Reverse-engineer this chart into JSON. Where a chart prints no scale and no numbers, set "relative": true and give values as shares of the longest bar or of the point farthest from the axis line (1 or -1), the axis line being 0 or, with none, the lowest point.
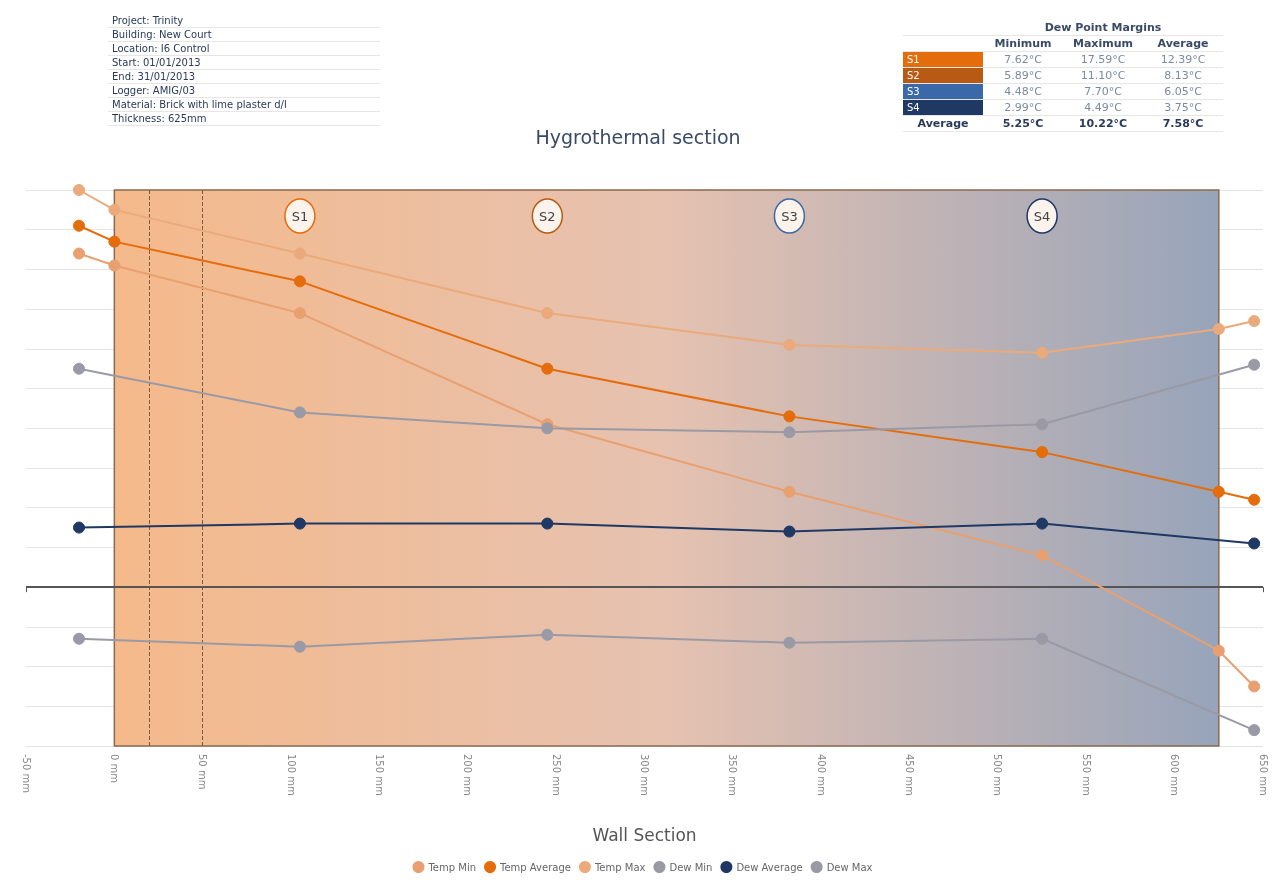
{
  "chart_data": {
    "type": "line",
    "subtitle": "Hygrothermal section",
    "xlabel": "Wall Section",
    "relative": true,
    "xlim": [
      -50,
      650
    ],
    "xticks": [
      {
        "value": -50,
        "label": "-50 mm"
      },
      {
        "value": 0,
        "label": "0 mm"
      },
      {
        "value": 50,
        "label": "50 mm"
      },
      {
        "value": 100,
        "label": "100 mm"
      },
      {
        "value": 150,
        "label": "150 mm"
      },
      {
        "value": 200,
        "label": "200 mm"
      },
      {
        "value": 250,
        "label": "250 mm"
      },
      {
        "value": 300,
        "label": "300 mm"
      },
      {
        "value": 350,
        "label": "350 mm"
      },
      {
        "value": 400,
        "label": "400 mm"
      },
      {
        "value": 450,
        "label": "450 mm"
      },
      {
        "value": 500,
        "label": "500 mm"
      },
      {
        "value": 550,
        "label": "550 mm"
      },
      {
        "value": 600,
        "label": "600 mm"
      },
      {
        "value": 650,
        "label": "650 mm"
      }
    ],
    "series": [
      {
        "name": "Temp Min",
        "color": "#e8a070",
        "x": [
          -20,
          0,
          105,
          245,
          382,
          525,
          625,
          645
        ],
        "values": [
          0.84,
          0.81,
          0.69,
          0.41,
          0.24,
          0.08,
          -0.16,
          -0.25
        ]
      },
      {
        "name": "Temp Average",
        "color": "#e46c0a",
        "x": [
          -20,
          0,
          105,
          245,
          382,
          525,
          625,
          645
        ],
        "values": [
          0.91,
          0.87,
          0.77,
          0.55,
          0.43,
          0.34,
          0.24,
          0.22
        ]
      },
      {
        "name": "Temp Max",
        "color": "#eaaa7c",
        "x": [
          -20,
          0,
          105,
          245,
          382,
          525,
          625,
          645
        ],
        "values": [
          1,
          0.95,
          0.84,
          0.69,
          0.61,
          0.59,
          0.65,
          0.67
        ]
      },
      {
        "name": "Dew Min",
        "color": "#9a9aa6",
        "x": [
          -20,
          105,
          245,
          382,
          525,
          645
        ],
        "values": [
          -0.13,
          -0.15,
          -0.12,
          -0.14,
          -0.13,
          -0.36
        ]
      },
      {
        "name": "Dew Average",
        "color": "#1f3864",
        "x": [
          -20,
          105,
          245,
          382,
          525,
          645
        ],
        "values": [
          0.15,
          0.16,
          0.16,
          0.14,
          0.16,
          0.11
        ]
      },
      {
        "name": "Dew Max",
        "color": "#9a9aa6",
        "x": [
          -20,
          105,
          245,
          382,
          525,
          645
        ],
        "values": [
          0.55,
          0.44,
          0.4,
          0.39,
          0.41,
          0.56
        ]
      }
    ],
    "ref_lines": [
      {
        "axis": "x",
        "value": 20,
        "line_style": "dashed",
        "color": "#7a5a40"
      },
      {
        "axis": "x",
        "value": 50,
        "line_style": "dashed",
        "color": "#7a5a40"
      },
      {
        "axis": "y",
        "value": 0,
        "color": "#555555"
      }
    ],
    "bands": [
      {
        "axis": "x",
        "from": 0,
        "to": 625
      }
    ],
    "annotations": [
      "Project: Trinity",
      "Building: New Court",
      "Location: I6 Control",
      "Start: 01/01/2013",
      "End: 31/01/2013",
      "Logger: AMIG/03",
      "Material: Brick with lime plaster d/l",
      "Thickness: 625mm",
      "Dew Point Margins",
      "Minimum",
      "Maximum",
      "Average",
      "S1",
      "7.62°C",
      "17.59°C",
      "12.39°C",
      "S2",
      "5.89°C",
      "11.10°C",
      "8.13°C",
      "S3",
      "4.48°C",
      "7.70°C",
      "6.05°C",
      "S4",
      "2.99°C",
      "4.49°C",
      "3.75°C",
      "Average",
      "5.25°C",
      "10.22°C",
      "7.58°C",
      "S1",
      "S2",
      "S3",
      "S4"
    ],
    "grid": "y",
    "legend": "bottom",
    "marker": "circle",
    "line_style": "solid"
  }
}
